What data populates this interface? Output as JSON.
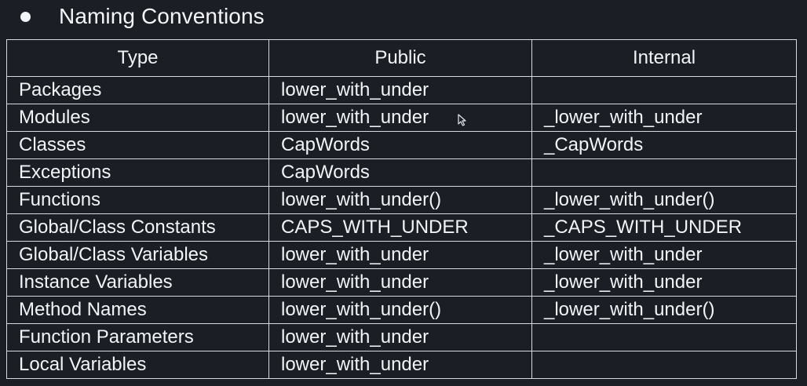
{
  "heading": {
    "title": "Naming Conventions"
  },
  "table": {
    "headers": {
      "type": "Type",
      "public": "Public",
      "internal": "Internal"
    },
    "rows": [
      {
        "type": "Packages",
        "public": "lower_with_under",
        "internal": ""
      },
      {
        "type": "Modules",
        "public": "lower_with_under",
        "internal": "_lower_with_under"
      },
      {
        "type": "Classes",
        "public": "CapWords",
        "internal": "_CapWords"
      },
      {
        "type": "Exceptions",
        "public": "CapWords",
        "internal": ""
      },
      {
        "type": "Functions",
        "public": "lower_with_under()",
        "internal": "_lower_with_under()"
      },
      {
        "type": "Global/Class Constants",
        "public": "CAPS_WITH_UNDER",
        "internal": "_CAPS_WITH_UNDER"
      },
      {
        "type": "Global/Class Variables",
        "public": "lower_with_under",
        "internal": "_lower_with_under"
      },
      {
        "type": "Instance Variables",
        "public": "lower_with_under",
        "internal": "_lower_with_under"
      },
      {
        "type": "Method Names",
        "public": "lower_with_under()",
        "internal": "_lower_with_under()"
      },
      {
        "type": "Function Parameters",
        "public": "lower_with_under",
        "internal": ""
      },
      {
        "type": "Local Variables",
        "public": "lower_with_under",
        "internal": ""
      }
    ]
  },
  "colors": {
    "background": "#1b1f25",
    "text": "#f2f4f6",
    "border": "#d7dbe0"
  },
  "icons": {
    "cursor": "mouse-pointer-icon",
    "bullet": "bullet-dot-icon"
  }
}
